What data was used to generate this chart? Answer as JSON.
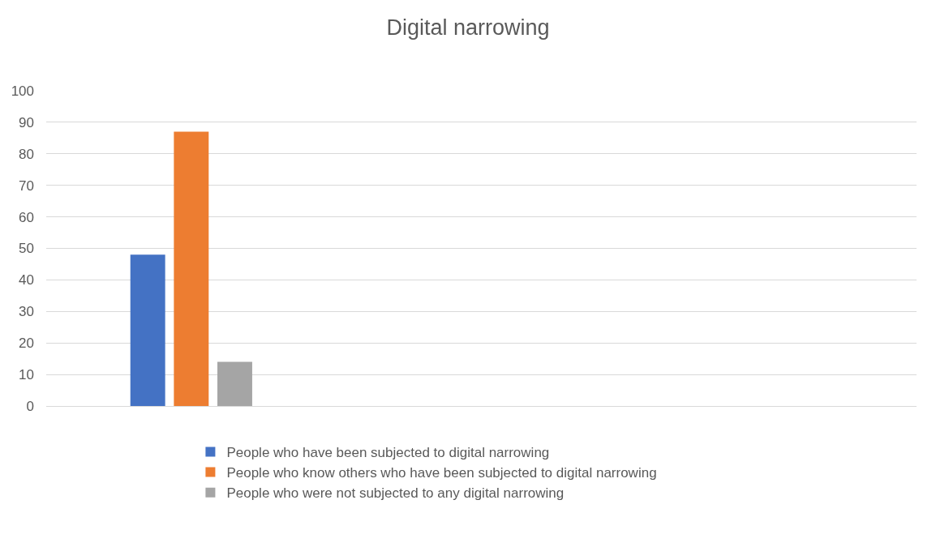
{
  "chart_data": {
    "type": "bar",
    "title": "Digital narrowing",
    "categories": [
      null,
      null,
      null
    ],
    "series": [
      {
        "name": "People who have been subjected to digital narrowing",
        "color": "#4472c4",
        "values": [
          48,
          null,
          null
        ]
      },
      {
        "name": "People who know others who have been subjected to digital narrowing",
        "color": "#ed7d31",
        "values": [
          87,
          null,
          null
        ]
      },
      {
        "name": "People who were not subjected to any digital narrowing",
        "color": "#a5a5a5",
        "values": [
          14,
          null,
          null
        ]
      }
    ],
    "ylim": [
      0,
      100
    ],
    "yticks": [
      0,
      10,
      20,
      30,
      40,
      50,
      60,
      70,
      80,
      90,
      100
    ],
    "grid": "y",
    "legend": "bottom"
  }
}
